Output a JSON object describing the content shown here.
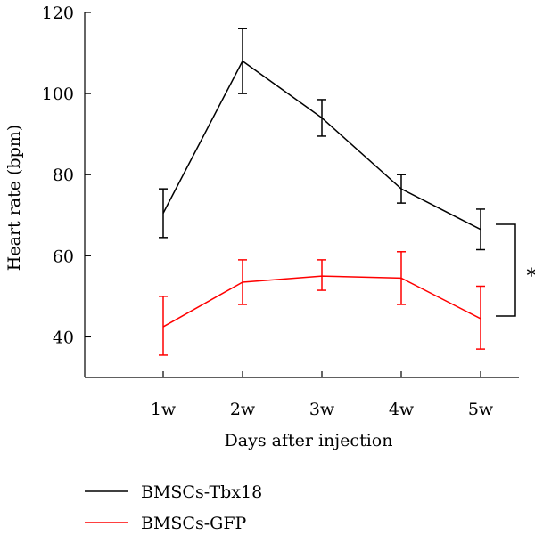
{
  "chart_data": {
    "type": "line",
    "categories": [
      "1w",
      "2w",
      "3w",
      "4w",
      "5w"
    ],
    "xlabel": "Days after injection",
    "ylabel": "Heart rate (bpm)",
    "ylim": [
      30,
      120
    ],
    "yticks": [
      40,
      60,
      80,
      100,
      120
    ],
    "grid": false,
    "legend_position": "bottom-left",
    "series": [
      {
        "name": "BMSCs-Tbx18",
        "color": "#000000",
        "values": [
          70.5,
          108,
          94,
          76.5,
          66.5
        ],
        "err_upper": [
          76.5,
          116,
          98.5,
          80,
          71.5
        ],
        "err_lower": [
          64.5,
          100,
          89.5,
          73,
          61.5
        ]
      },
      {
        "name": "BMSCs-GFP",
        "color": "#ff0000",
        "values": [
          42.5,
          53.5,
          55,
          54.5,
          44.5
        ],
        "err_upper": [
          50,
          59,
          59,
          61,
          52.5
        ],
        "err_lower": [
          35.5,
          48,
          51.5,
          48,
          37
        ]
      }
    ],
    "annotation": {
      "text": "*",
      "between_series": [
        "BMSCs-Tbx18",
        "BMSCs-GFP"
      ],
      "at_category": "5w"
    }
  }
}
